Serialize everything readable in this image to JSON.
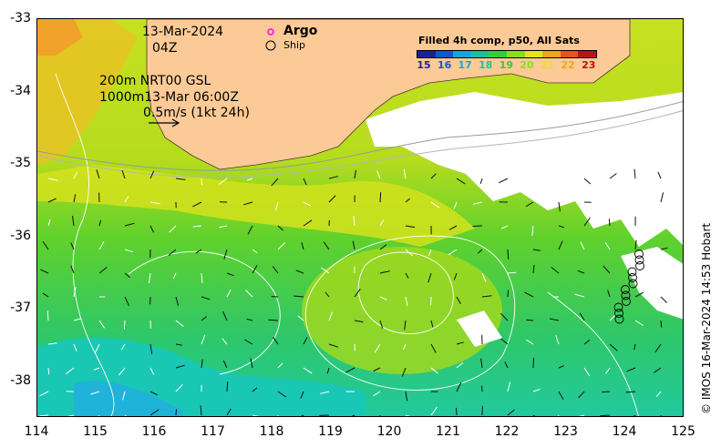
{
  "map": {
    "date": "13-Mar-2024",
    "time": "04Z",
    "depth_line1": "200m  NRT00 GSL",
    "depth_line2": "1000m13-Mar 06:00Z",
    "scale_label": "0.5m/s (1kt 24h)",
    "argo_label": "Argo",
    "ship_label": "Ship",
    "legend_title": "Filled 4h comp, p50, All Sats",
    "legend_values": [
      "15",
      "16",
      "17",
      "18",
      "19",
      "20",
      "21",
      "22",
      "23"
    ],
    "legend_colors": [
      "#1b1f9e",
      "#0d58d6",
      "#10a7e0",
      "#16c39a",
      "#2bd13b",
      "#8ddd1f",
      "#e3e51a",
      "#f3a21a",
      "#e9521b",
      "#b8131b"
    ],
    "land_color": "#fcca96",
    "credit": "© IMOS 16-Mar-2024 14:53 Hobart",
    "y_ticks": [
      "-33",
      "-34",
      "-35",
      "-36",
      "-37",
      "-38"
    ],
    "x_ticks": [
      "114",
      "115",
      "116",
      "117",
      "118",
      "119",
      "120",
      "121",
      "122",
      "123",
      "124",
      "125"
    ]
  }
}
